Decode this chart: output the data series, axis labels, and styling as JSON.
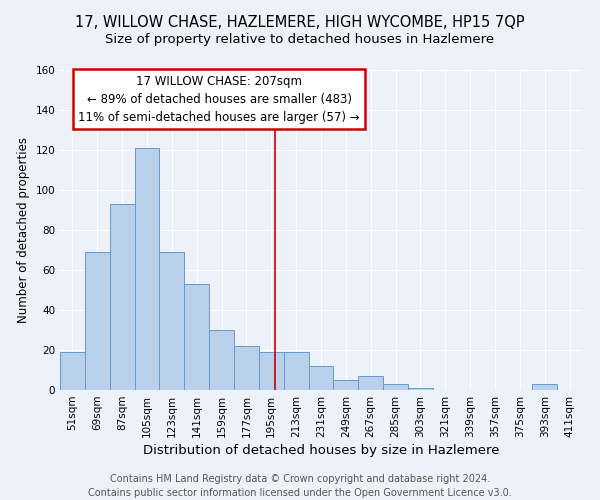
{
  "title": "17, WILLOW CHASE, HAZLEMERE, HIGH WYCOMBE, HP15 7QP",
  "subtitle": "Size of property relative to detached houses in Hazlemere",
  "xlabel": "Distribution of detached houses by size in Hazlemere",
  "ylabel": "Number of detached properties",
  "bin_labels": [
    "51sqm",
    "69sqm",
    "87sqm",
    "105sqm",
    "123sqm",
    "141sqm",
    "159sqm",
    "177sqm",
    "195sqm",
    "213sqm",
    "231sqm",
    "249sqm",
    "267sqm",
    "285sqm",
    "303sqm",
    "321sqm",
    "339sqm",
    "357sqm",
    "375sqm",
    "393sqm",
    "411sqm"
  ],
  "bin_edges": [
    51,
    69,
    87,
    105,
    123,
    141,
    159,
    177,
    195,
    213,
    231,
    249,
    267,
    285,
    303,
    321,
    339,
    357,
    375,
    393,
    411,
    429
  ],
  "bar_heights": [
    19,
    69,
    93,
    121,
    69,
    53,
    30,
    22,
    19,
    19,
    12,
    5,
    7,
    3,
    1,
    0,
    0,
    0,
    0,
    3,
    0
  ],
  "bar_color": "#b8d0ea",
  "bar_edgecolor": "#6699cc",
  "property_line_x": 207,
  "property_line_color": "#cc0000",
  "ylim": [
    0,
    160
  ],
  "yticks": [
    0,
    20,
    40,
    60,
    80,
    100,
    120,
    140,
    160
  ],
  "annotation_title": "17 WILLOW CHASE: 207sqm",
  "annotation_line1": "← 89% of detached houses are smaller (483)",
  "annotation_line2": "11% of semi-detached houses are larger (57) →",
  "annotation_box_color": "#ffffff",
  "annotation_box_edgecolor": "#cc0000",
  "footer_line1": "Contains HM Land Registry data © Crown copyright and database right 2024.",
  "footer_line2": "Contains public sector information licensed under the Open Government Licence v3.0.",
  "background_color": "#edf2fa",
  "grid_color": "#ffffff",
  "title_fontsize": 10.5,
  "subtitle_fontsize": 9.5,
  "xlabel_fontsize": 9.5,
  "ylabel_fontsize": 8.5,
  "tick_fontsize": 7.5,
  "annotation_fontsize": 8.5,
  "footer_fontsize": 7.0
}
